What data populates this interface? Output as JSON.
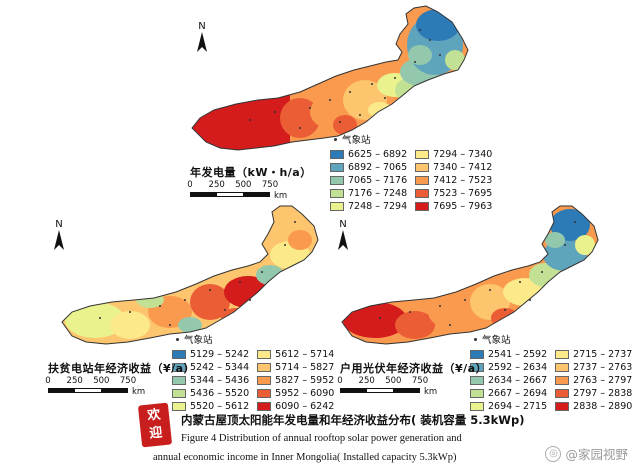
{
  "station_label": "气象站",
  "north_label": "N",
  "scale": {
    "ticks": [
      "0",
      "250",
      "500",
      "750"
    ],
    "unit": "km"
  },
  "maps": [
    {
      "title": "年发电量（kW・h/a）",
      "legend": [
        "6625 – 6892",
        "6892 – 7065",
        "7065 – 7176",
        "7176 – 7248",
        "7248 – 7294",
        "7294 – 7340",
        "7340 – 7412",
        "7412 – 7523",
        "7523 – 7695",
        "7695 – 7963"
      ],
      "colors": [
        "#2c7bb6",
        "#5fa4bd",
        "#93c8ad",
        "#c3e194",
        "#e9f28d",
        "#fbe98a",
        "#fdc56e",
        "#f99a4f",
        "#ea5d35",
        "#d41c1c"
      ]
    },
    {
      "title": "扶贫电站年经济收益（¥/a）",
      "legend": [
        "5129 – 5242",
        "5242 – 5344",
        "5344 – 5436",
        "5436 – 5520",
        "5520 – 5612",
        "5612 – 5714",
        "5714 – 5827",
        "5827 – 5952",
        "5952 – 6090",
        "6090 – 6242"
      ],
      "colors": [
        "#2c7bb6",
        "#5fa4bd",
        "#93c8ad",
        "#c3e194",
        "#e9f28d",
        "#fbe98a",
        "#fdc56e",
        "#f99a4f",
        "#ea5d35",
        "#d41c1c"
      ]
    },
    {
      "title": "户用光伏年经济收益（¥/a）",
      "legend": [
        "2541 – 2592",
        "2592 – 2634",
        "2634 – 2667",
        "2667 – 2694",
        "2694 – 2715",
        "2715 – 2737",
        "2737 – 2763",
        "2763 – 2797",
        "2797 – 2838",
        "2838 – 2890"
      ],
      "colors": [
        "#2c7bb6",
        "#5fa4bd",
        "#93c8ad",
        "#c3e194",
        "#e9f28d",
        "#fbe98a",
        "#fdc56e",
        "#f99a4f",
        "#ea5d35",
        "#d41c1c"
      ]
    }
  ],
  "caption": {
    "cn": "内蒙古屋顶太阳能年发电量和年经济收益分布( 装机容量 5.3kWp)",
    "en_line1": "Figure 4  Distribution of annual rooftop solar power generation and",
    "en_line2": "annual economic income in Inner Mongolia( Installed capacity 5.3kWp)"
  },
  "stamp": {
    "line1": "欢",
    "line2": "迎"
  },
  "watermark": "@家园视野"
}
